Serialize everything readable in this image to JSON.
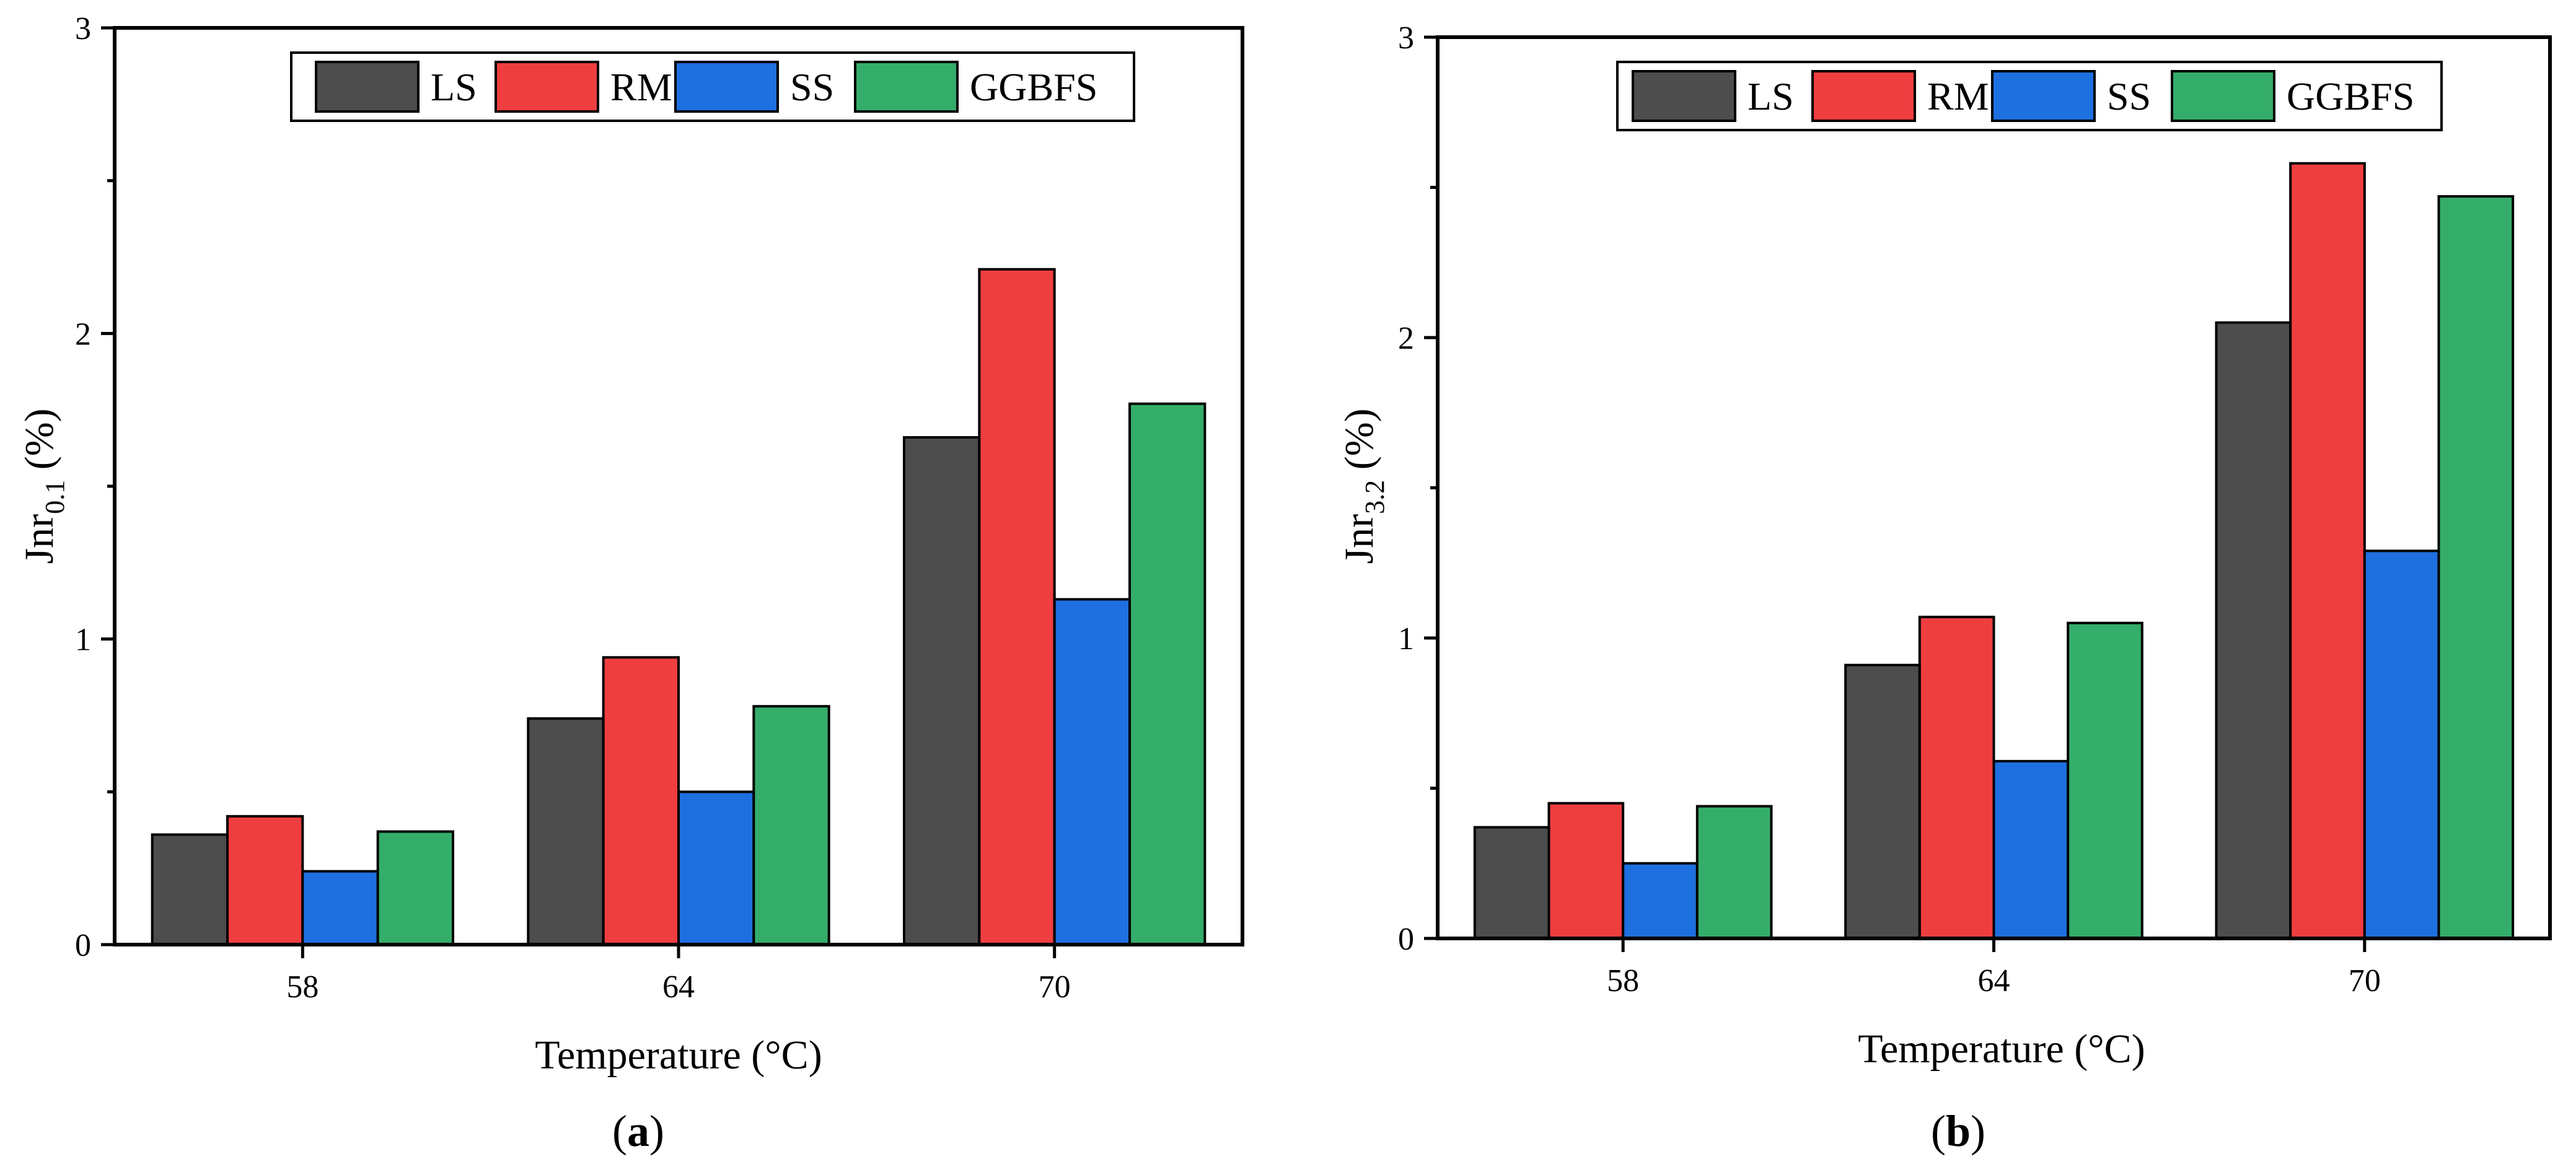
{
  "charts": [
    {
      "panel": "a",
      "panel_label": {
        "open": "(",
        "letter": "a",
        "close": ")"
      },
      "y_label": {
        "main": "Jnr",
        "sub": "0.1",
        "unit": " (%)"
      },
      "x_label": "Temperature (°C)"
    },
    {
      "panel": "b",
      "panel_label": {
        "open": "(",
        "letter": "b",
        "close": ")"
      },
      "y_label": {
        "main": "Jnr",
        "sub": "3.2",
        "unit": " (%)"
      },
      "x_label": "Temperature (°C)"
    }
  ],
  "chart_data": [
    {
      "type": "bar",
      "title": "",
      "xlabel": "Temperature (°C)",
      "ylabel": "Jnr0.1 (%)",
      "categories": [
        "58",
        "64",
        "70"
      ],
      "ylim": [
        0,
        3
      ],
      "yticks": [
        "0",
        "1",
        "2",
        "3"
      ],
      "legend_position": "top-center",
      "series": [
        {
          "name": "LS",
          "color": "#4d4d4d",
          "values": [
            0.36,
            0.74,
            1.66
          ]
        },
        {
          "name": "RM",
          "color": "#ef3e40",
          "values": [
            0.42,
            0.94,
            2.21
          ]
        },
        {
          "name": "SS",
          "color": "#1e6fe0",
          "values": [
            0.24,
            0.5,
            1.13
          ]
        },
        {
          "name": "GGBFS",
          "color": "#35ad6a",
          "values": [
            0.37,
            0.78,
            1.77
          ]
        }
      ]
    },
    {
      "type": "bar",
      "title": "",
      "xlabel": "Temperature (°C)",
      "ylabel": "Jnr3.2 (%)",
      "categories": [
        "58",
        "64",
        "70"
      ],
      "ylim": [
        0,
        3
      ],
      "yticks": [
        "0",
        "1",
        "2",
        "3"
      ],
      "legend_position": "top-center",
      "series": [
        {
          "name": "LS",
          "color": "#4d4d4d",
          "values": [
            0.37,
            0.91,
            2.05
          ]
        },
        {
          "name": "RM",
          "color": "#ef3e40",
          "values": [
            0.45,
            1.07,
            2.58
          ]
        },
        {
          "name": "SS",
          "color": "#1e6fe0",
          "values": [
            0.25,
            0.59,
            1.29
          ]
        },
        {
          "name": "GGBFS",
          "color": "#35ad6a",
          "values": [
            0.44,
            1.05,
            2.47
          ]
        }
      ]
    }
  ]
}
